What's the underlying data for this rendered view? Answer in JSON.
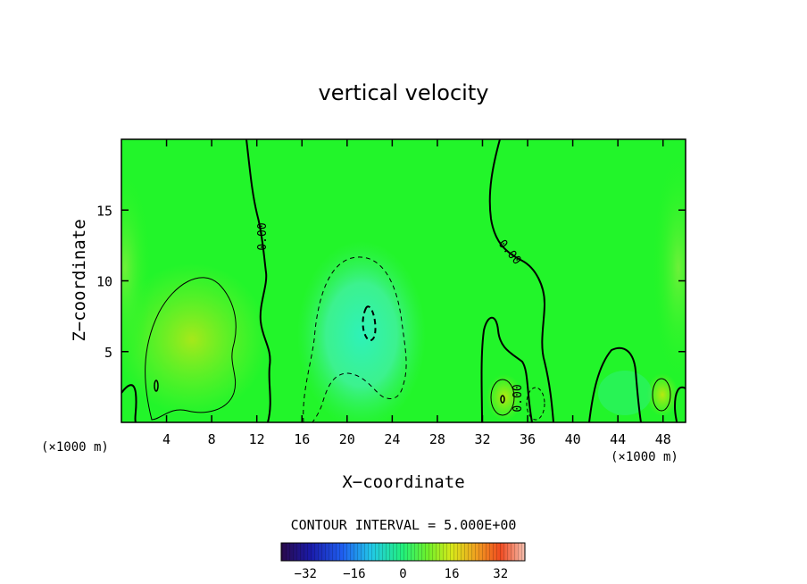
{
  "chart_data": {
    "type": "heatmap",
    "title": "vertical velocity",
    "xlabel": "X−coordinate",
    "ylabel": "Z−coordinate",
    "x_unit_left": "(×1000 m)",
    "x_unit_right": "(×1000 m)",
    "xlim": [
      0,
      50
    ],
    "ylim": [
      0,
      20
    ],
    "x_ticks": [
      4,
      8,
      12,
      16,
      20,
      24,
      28,
      32,
      36,
      40,
      44,
      48
    ],
    "x_tick_labels": [
      "4",
      "8",
      "12",
      "16",
      "20",
      "24",
      "28",
      "32",
      "36",
      "40",
      "44",
      "48"
    ],
    "y_ticks": [
      5,
      10,
      15
    ],
    "y_tick_labels": [
      "5",
      "10",
      "15"
    ],
    "contour_interval_text": "CONTOUR INTERVAL = 5.000E+00",
    "contour_labels": [
      "0.00",
      "0.00",
      "0.00"
    ],
    "colorbar": {
      "min": -40,
      "max": 40,
      "ticks": [
        -32,
        -16,
        0,
        16,
        32
      ],
      "tick_labels": [
        "−32",
        "−16",
        "0",
        "16",
        "32"
      ]
    },
    "features": [
      {
        "kind": "updraft",
        "x": 6,
        "z": 6,
        "value": 5
      },
      {
        "kind": "downdraft",
        "x": 21.5,
        "z": 7.5,
        "value": -8
      },
      {
        "kind": "updraft",
        "x": 33.5,
        "z": 1.8,
        "value": 6
      },
      {
        "kind": "updraft",
        "x": 47.5,
        "z": 2,
        "value": 4
      }
    ]
  }
}
